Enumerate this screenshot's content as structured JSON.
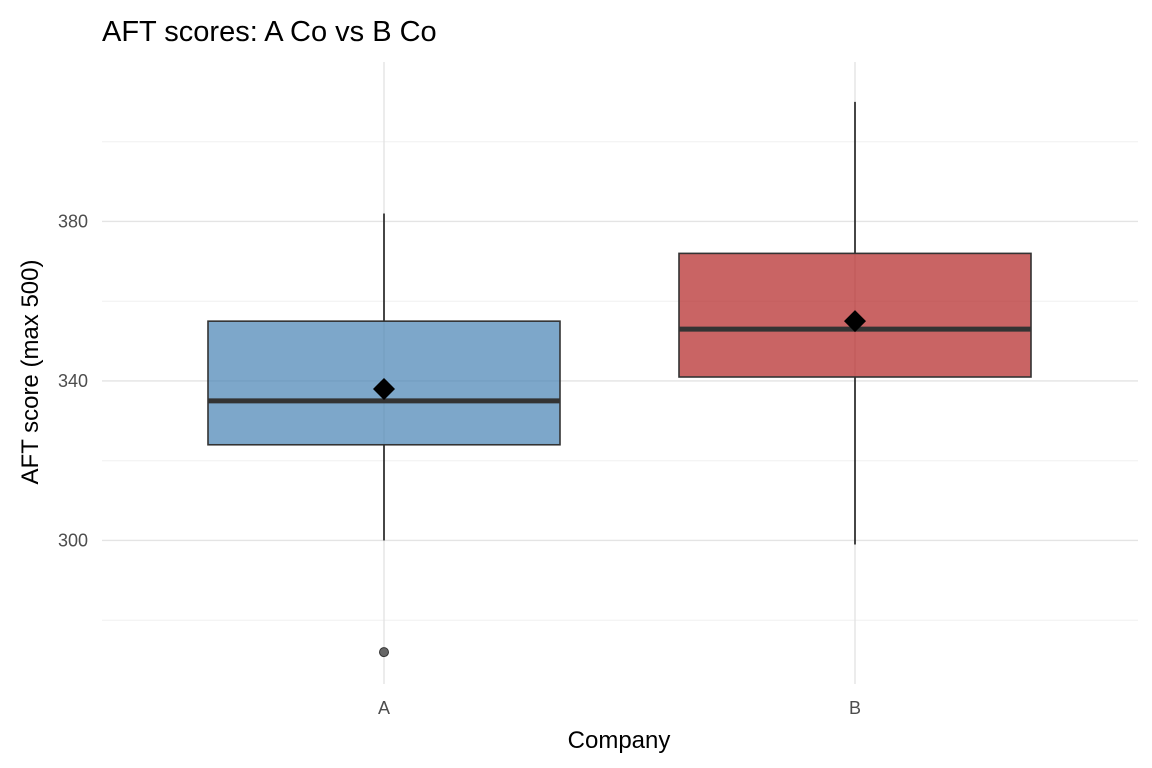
{
  "chart_data": {
    "type": "boxplot",
    "title": "AFT scores: A Co vs B Co",
    "xlabel": "Company",
    "ylabel": "AFT score (max 500)",
    "ylim": [
      264,
      420
    ],
    "yticks": [
      300,
      340,
      380
    ],
    "minor_yticks": [
      280,
      320,
      360,
      400
    ],
    "grid": true,
    "legend": "none",
    "categories": [
      "A",
      "B"
    ],
    "series": [
      {
        "category": "A",
        "color": "#4682B4",
        "min": 300,
        "q1": 324,
        "median": 335,
        "q3": 355,
        "max": 382,
        "mean": 338,
        "outliers": [
          272
        ]
      },
      {
        "category": "B",
        "color": "#B22222",
        "min": 299,
        "q1": 341,
        "median": 353,
        "q3": 372,
        "max": 410,
        "mean": 355,
        "outliers": []
      }
    ]
  }
}
